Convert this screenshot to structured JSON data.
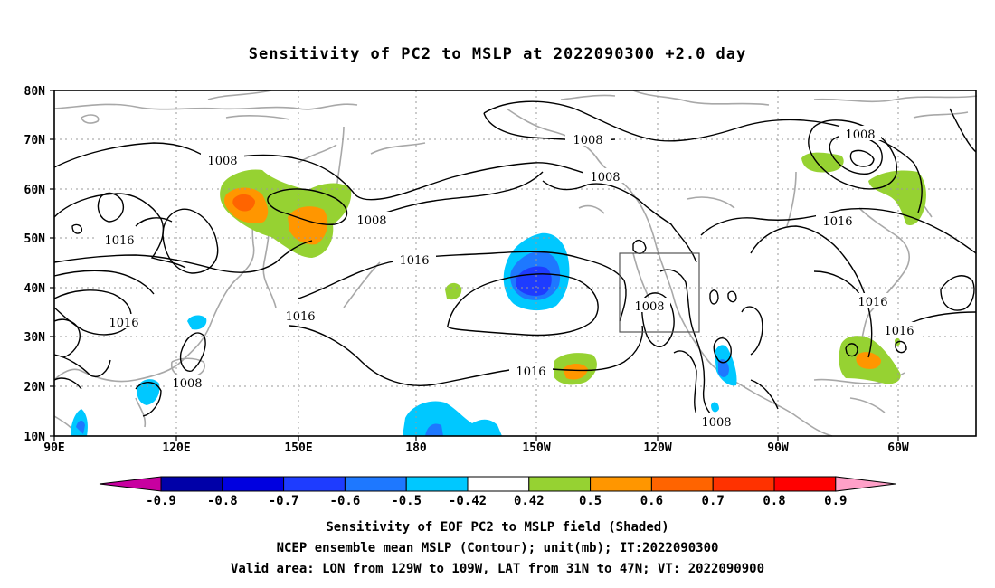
{
  "title": "Sensitivity of PC2 to MSLP at 2022090300 +2.0 day",
  "lat_labels": [
    "80N",
    "70N",
    "60N",
    "50N",
    "40N",
    "30N",
    "20N",
    "10N"
  ],
  "lon_labels": [
    "90E",
    "120E",
    "150E",
    "180",
    "150W",
    "120W",
    "90W",
    "60W"
  ],
  "contour_labels": {
    "c1": "1008",
    "c2": "1008",
    "c3": "1008",
    "c4": "1008",
    "c5": "1008",
    "c6": "1008",
    "c7": "1008",
    "c8": "1008",
    "c9": "1016",
    "c10": "1016",
    "c11": "1016",
    "c12": "1016",
    "c13": "1016",
    "c14": "1016",
    "c15": "1016",
    "c16": "1016"
  },
  "colorbar": {
    "labels": [
      "-0.9",
      "-0.8",
      "-0.7",
      "-0.6",
      "-0.5",
      "-0.42",
      "0.42",
      "0.5",
      "0.6",
      "0.7",
      "0.8",
      "0.9"
    ],
    "colors": [
      "#c800a0",
      "#0000a8",
      "#0000e0",
      "#1e3cff",
      "#1e78ff",
      "#00c8ff",
      "#ffffff",
      "#96d232",
      "#ff9600",
      "#ff6400",
      "#ff3200",
      "#ff0000",
      "#ffa0c8"
    ]
  },
  "footer": {
    "line1": "Sensitivity of EOF PC2 to MSLP field (Shaded)",
    "line2": "NCEP ensemble mean MSLP (Contour); unit(mb); IT:2022090300",
    "line3": "Valid area: LON from 129W to 109W, LAT from 31N to 47N; VT: 2022090900"
  }
}
